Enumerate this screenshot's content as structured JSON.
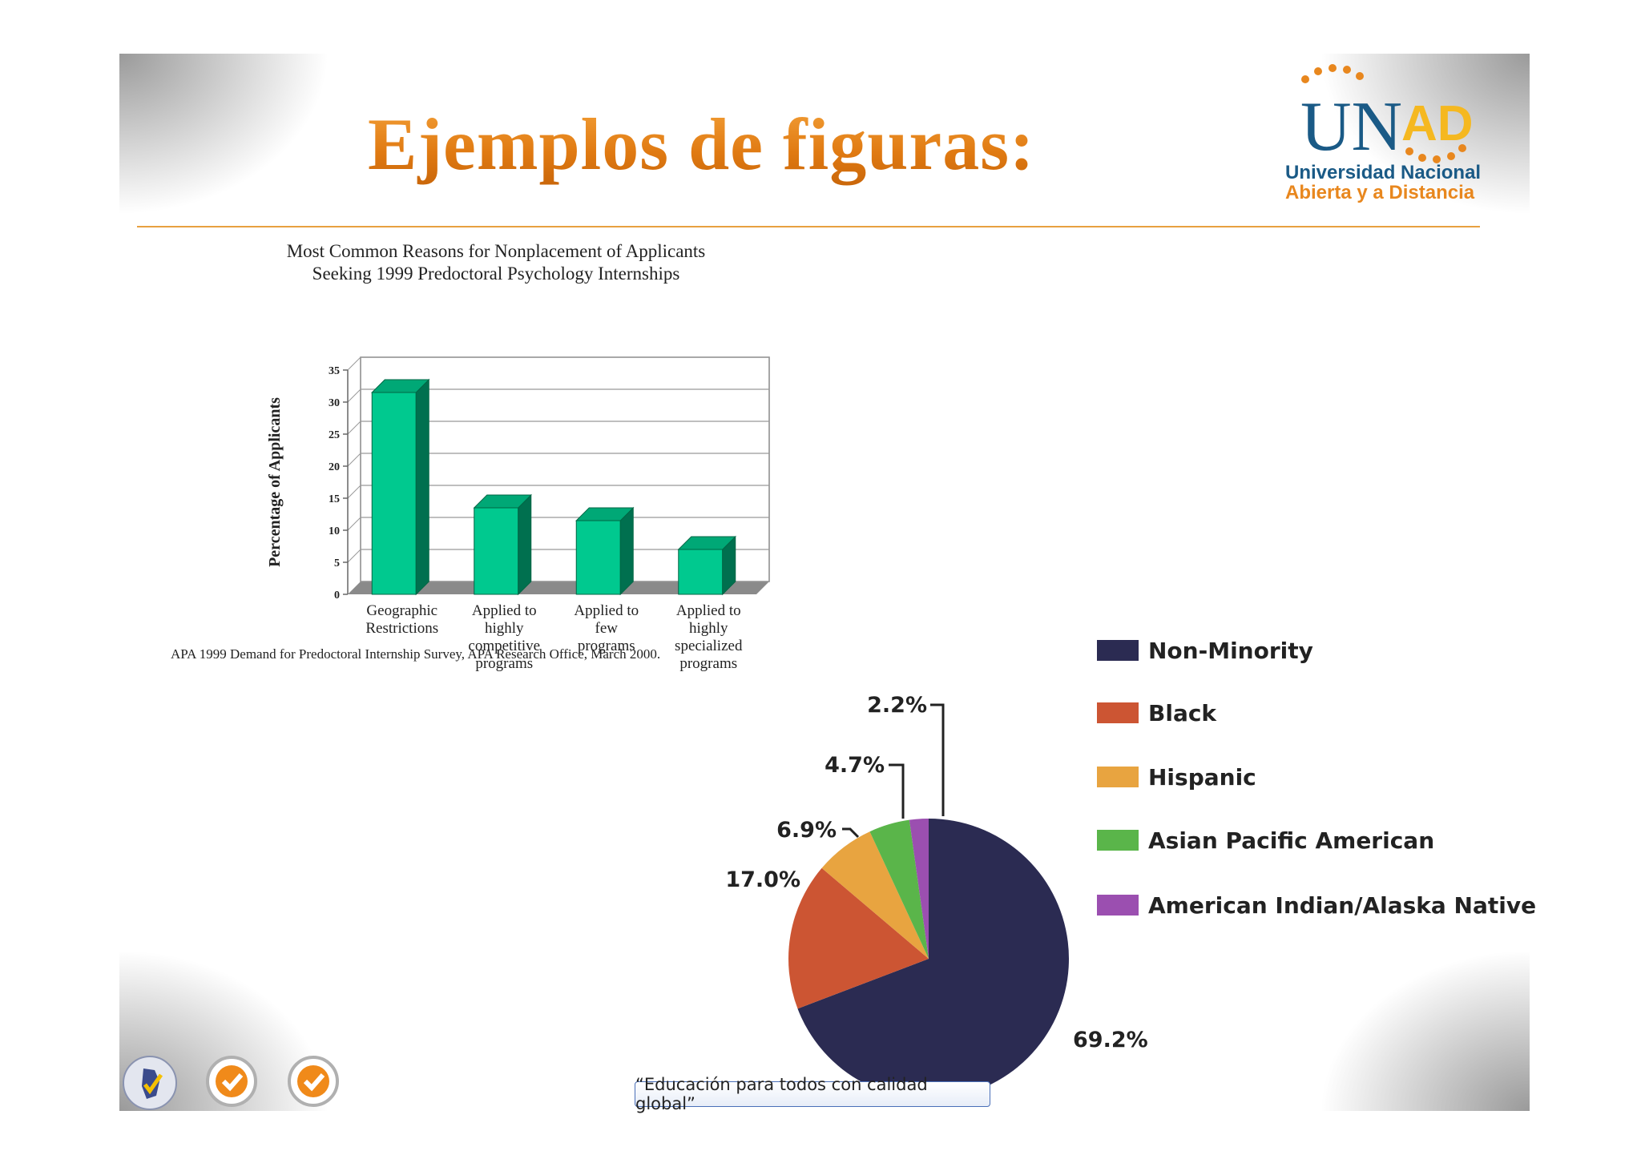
{
  "slide": {
    "title": "Ejemplos de figuras:",
    "slogan": "“Educación para todos con calidad global”"
  },
  "logo": {
    "wordmark": "UNAD",
    "line1": "Universidad Nacional",
    "line2": "Abierta y a Distancia"
  },
  "chart_data": [
    {
      "type": "bar",
      "title": "Most Common Reasons for Nonplacement of Applicants Seeking 1999 Predoctoral Psychology Internships",
      "title_lines": [
        "Most Common Reasons for Nonplacement of Applicants",
        "Seeking 1999 Predoctoral Psychology Internships"
      ],
      "ylabel": "Percentage of Applicants",
      "xlabel": "",
      "ylim": [
        0,
        35
      ],
      "yticks": [
        0,
        5,
        10,
        15,
        20,
        25,
        30,
        35
      ],
      "grid": true,
      "categories": [
        [
          "Geographic",
          "Restrictions"
        ],
        [
          "Applied to",
          "highly",
          "competitive",
          "programs"
        ],
        [
          "Applied to",
          "few",
          "programs"
        ],
        [
          "Applied to",
          "highly",
          "specialized",
          "programs"
        ]
      ],
      "values": [
        31.5,
        13.5,
        11.5,
        7
      ],
      "color": "#00c98f",
      "source": "APA 1999 Demand for Predoctoral Internship Survey, APA Research Office, March 2000."
    },
    {
      "type": "pie",
      "slices": [
        {
          "name": "Non-Minority",
          "value": 69.2,
          "label": "69.2%",
          "color": "#2b2b52"
        },
        {
          "name": "Black",
          "value": 17.0,
          "label": "17.0%",
          "color": "#cc5533"
        },
        {
          "name": "Hispanic",
          "value": 6.9,
          "label": "6.9%",
          "color": "#e8a440"
        },
        {
          "name": "Asian Pacific American",
          "value": 4.7,
          "label": "4.7%",
          "color": "#5ab54a"
        },
        {
          "name": "American Indian/Alaska Native",
          "value": 2.2,
          "label": "2.2%",
          "color": "#9b4fb0"
        }
      ],
      "legend": "right"
    }
  ]
}
